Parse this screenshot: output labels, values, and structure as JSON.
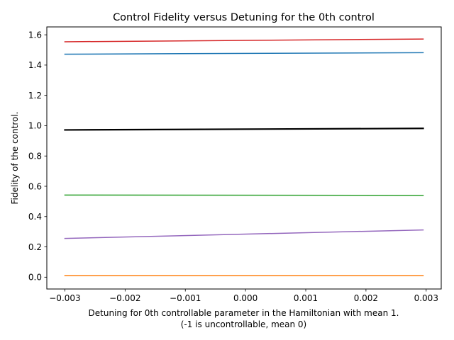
{
  "chart_data": {
    "type": "line",
    "title": "Control Fidelity versus Detuning for the 0th control",
    "xlabel_line1": "Detuning for 0th controllable parameter in the Hamiltonian with mean 1.",
    "xlabel_line2": "(-1 is uncontrollable, mean 0)",
    "ylabel": "Fidelity of the control.",
    "xlim": [
      -0.0033,
      0.00325
    ],
    "ylim": [
      -0.078,
      1.652
    ],
    "x_ticks": [
      -0.003,
      -0.002,
      -0.001,
      0.0,
      0.001,
      0.002,
      0.003
    ],
    "x_tick_labels": [
      "−0.003",
      "−0.002",
      "−0.001",
      "0.000",
      "0.001",
      "0.002",
      "0.003"
    ],
    "y_ticks": [
      0.0,
      0.2,
      0.4,
      0.6,
      0.8,
      1.0,
      1.2,
      1.4,
      1.6
    ],
    "y_tick_labels": [
      "0.0",
      "0.2",
      "0.4",
      "0.6",
      "0.8",
      "1.0",
      "1.2",
      "1.4",
      "1.6"
    ],
    "grid": false,
    "series": [
      {
        "color": "#1f77b4",
        "x": [
          -0.003,
          0.00295
        ],
        "y": [
          1.472,
          1.482
        ],
        "width": 1.5
      },
      {
        "color": "#ff7f0e",
        "x": [
          -0.003,
          0.00295
        ],
        "y": [
          0.01,
          0.01
        ],
        "width": 1.5
      },
      {
        "color": "#2ca02c",
        "x": [
          -0.003,
          0.00295
        ],
        "y": [
          0.542,
          0.54
        ],
        "width": 1.5
      },
      {
        "color": "#d62728",
        "x": [
          -0.003,
          0.00295
        ],
        "y": [
          1.554,
          1.572
        ],
        "width": 1.5
      },
      {
        "color": "#9467bd",
        "x": [
          -0.003,
          0.00295
        ],
        "y": [
          0.256,
          0.312
        ],
        "width": 1.5
      },
      {
        "color": "#000000",
        "x": [
          -0.003,
          0.00295
        ],
        "y": [
          0.972,
          0.982
        ],
        "width": 2.2
      }
    ]
  }
}
